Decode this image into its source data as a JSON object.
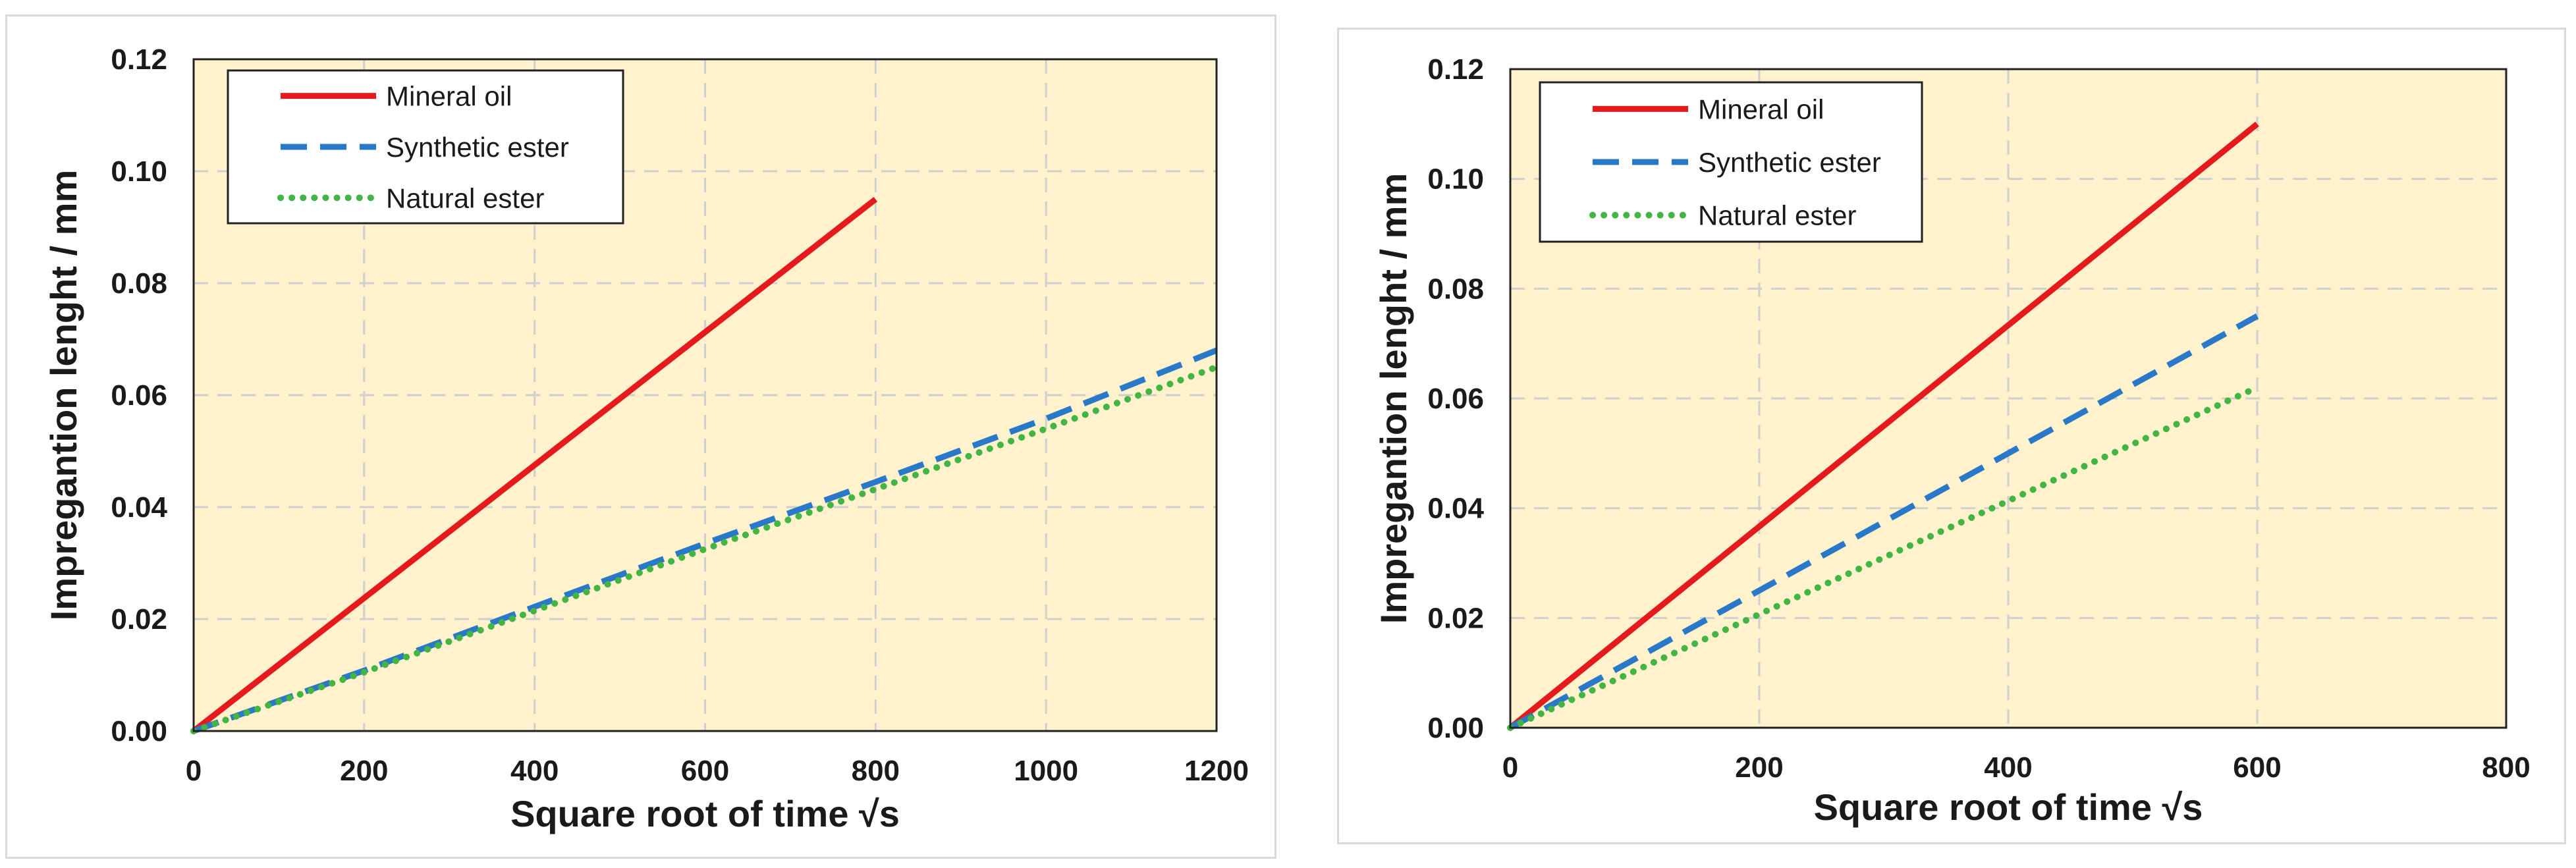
{
  "colors": {
    "plot_background": "#fff2cc",
    "grid": "#cfcfcf",
    "mineral_oil": "#e41a1c",
    "synthetic_ester": "#2a78c8",
    "natural_ester": "#44b544"
  },
  "chart_data": [
    {
      "type": "line",
      "title": "",
      "xlabel": "Square root of time √s",
      "ylabel": "Impregantion lenght / mm",
      "xlim": [
        0,
        1200
      ],
      "ylim": [
        0,
        0.12
      ],
      "xticks": [
        "0",
        "200",
        "400",
        "600",
        "800",
        "1000",
        "1200"
      ],
      "yticks": [
        "0.00",
        "0.02",
        "0.04",
        "0.06",
        "0.08",
        "0.10",
        "0.12"
      ],
      "grid": true,
      "legend_position": "top-left",
      "series": [
        {
          "name": "Mineral oil",
          "style": "solid",
          "color_key": "mineral_oil",
          "x": [
            0,
            800
          ],
          "y": [
            0,
            0.095
          ]
        },
        {
          "name": "Synthetic ester",
          "style": "dashed",
          "color_key": "synthetic_ester",
          "x": [
            0,
            200,
            400,
            600,
            800,
            1000,
            1200
          ],
          "y": [
            0,
            0.0108,
            0.0222,
            0.0335,
            0.0445,
            0.0558,
            0.068
          ]
        },
        {
          "name": "Natural ester",
          "style": "dotted",
          "color_key": "natural_ester",
          "x": [
            0,
            200,
            400,
            600,
            800,
            1000,
            1200
          ],
          "y": [
            0,
            0.0105,
            0.0215,
            0.0325,
            0.0432,
            0.054,
            0.065
          ]
        }
      ]
    },
    {
      "type": "line",
      "title": "",
      "xlabel": "Square root of time √s",
      "ylabel": "Impregantion lenght / mm",
      "xlim": [
        0,
        800
      ],
      "ylim": [
        0,
        0.12
      ],
      "xticks": [
        "0",
        "200",
        "400",
        "600",
        "800"
      ],
      "yticks": [
        "0.00",
        "0.02",
        "0.04",
        "0.06",
        "0.08",
        "0.10",
        "0.12"
      ],
      "grid": true,
      "legend_position": "top-left",
      "series": [
        {
          "name": "Mineral oil",
          "style": "solid",
          "color_key": "mineral_oil",
          "x": [
            0,
            600
          ],
          "y": [
            0,
            0.11
          ]
        },
        {
          "name": "Synthetic ester",
          "style": "dashed",
          "color_key": "synthetic_ester",
          "x": [
            0,
            600
          ],
          "y": [
            0,
            0.075
          ]
        },
        {
          "name": "Natural ester",
          "style": "dotted",
          "color_key": "natural_ester",
          "x": [
            0,
            600
          ],
          "y": [
            0,
            0.062
          ]
        }
      ]
    }
  ]
}
